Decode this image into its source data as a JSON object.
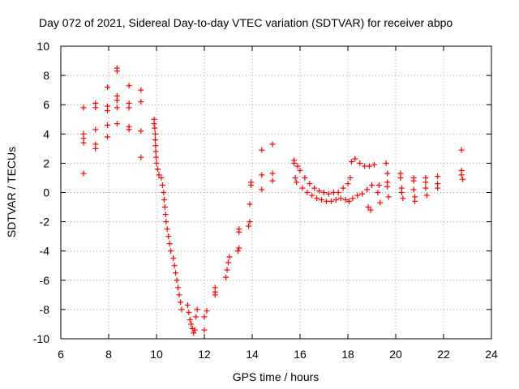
{
  "chart_data": {
    "type": "scatter",
    "title": "Day 072 of 2021, Sidereal Day-to-day VTEC variation (SDTVAR) for receiver abpo",
    "xlabel": "GPS time / hours",
    "ylabel": "SDTVAR / TECUs",
    "xlim": [
      6,
      24
    ],
    "ylim": [
      -10,
      10
    ],
    "xticks": [
      "6",
      "8",
      "10",
      "12",
      "14",
      "16",
      "18",
      "20",
      "22",
      "24"
    ],
    "yticks": [
      "10",
      "8",
      "6",
      "4",
      "2",
      "0",
      "-2",
      "-4",
      "-6",
      "-8",
      "-10"
    ],
    "grid": true,
    "marker": "plus",
    "color": "#ff0000",
    "series": [
      {
        "name": "SDTVAR",
        "points": [
          [
            6.95,
            5.8
          ],
          [
            6.95,
            4.0
          ],
          [
            6.95,
            3.7
          ],
          [
            6.95,
            3.4
          ],
          [
            6.95,
            1.3
          ],
          [
            7.45,
            6.1
          ],
          [
            7.45,
            5.8
          ],
          [
            7.45,
            4.3
          ],
          [
            7.45,
            3.3
          ],
          [
            7.45,
            3.0
          ],
          [
            7.95,
            7.2
          ],
          [
            7.95,
            5.9
          ],
          [
            7.95,
            5.6
          ],
          [
            7.95,
            4.6
          ],
          [
            7.95,
            3.8
          ],
          [
            8.35,
            8.5
          ],
          [
            8.35,
            8.3
          ],
          [
            8.35,
            6.6
          ],
          [
            8.35,
            6.3
          ],
          [
            8.35,
            5.8
          ],
          [
            8.35,
            4.7
          ],
          [
            8.85,
            7.3
          ],
          [
            8.85,
            6.1
          ],
          [
            8.85,
            5.8
          ],
          [
            8.85,
            4.5
          ],
          [
            8.85,
            4.3
          ],
          [
            9.35,
            7.0
          ],
          [
            9.35,
            6.2
          ],
          [
            9.35,
            4.2
          ],
          [
            9.35,
            2.4
          ],
          [
            9.9,
            5.0
          ],
          [
            9.9,
            4.7
          ],
          [
            9.93,
            4.4
          ],
          [
            9.95,
            4.0
          ],
          [
            9.95,
            3.6
          ],
          [
            9.96,
            3.2
          ],
          [
            9.97,
            2.8
          ],
          [
            9.98,
            2.4
          ],
          [
            10.0,
            2.0
          ],
          [
            10.05,
            1.6
          ],
          [
            10.1,
            1.2
          ],
          [
            10.2,
            1.0
          ],
          [
            10.25,
            0.5
          ],
          [
            10.3,
            0.0
          ],
          [
            10.32,
            -0.5
          ],
          [
            10.35,
            -1.0
          ],
          [
            10.38,
            -1.5
          ],
          [
            10.4,
            -2.0
          ],
          [
            10.45,
            -2.5
          ],
          [
            10.5,
            -3.0
          ],
          [
            10.55,
            -3.5
          ],
          [
            10.6,
            -4.0
          ],
          [
            10.7,
            -4.5
          ],
          [
            10.75,
            -5.0
          ],
          [
            10.8,
            -5.5
          ],
          [
            10.85,
            -6.0
          ],
          [
            10.9,
            -6.5
          ],
          [
            10.95,
            -7.0
          ],
          [
            11.0,
            -7.5
          ],
          [
            11.05,
            -8.0
          ],
          [
            11.3,
            -7.7
          ],
          [
            11.35,
            -8.2
          ],
          [
            11.4,
            -8.7
          ],
          [
            11.45,
            -9.0
          ],
          [
            11.5,
            -9.3
          ],
          [
            11.55,
            -9.6
          ],
          [
            11.6,
            -9.4
          ],
          [
            11.65,
            -8.5
          ],
          [
            11.7,
            -8.0
          ],
          [
            12.0,
            -8.5
          ],
          [
            12.0,
            -9.4
          ],
          [
            12.1,
            -8.1
          ],
          [
            12.45,
            -7.0
          ],
          [
            12.45,
            -6.8
          ],
          [
            12.45,
            -6.5
          ],
          [
            12.9,
            -5.8
          ],
          [
            12.95,
            -5.3
          ],
          [
            13.0,
            -4.8
          ],
          [
            13.05,
            -4.4
          ],
          [
            13.4,
            -4.0
          ],
          [
            13.45,
            -3.8
          ],
          [
            13.45,
            -2.7
          ],
          [
            13.45,
            -2.5
          ],
          [
            13.85,
            -2.3
          ],
          [
            13.9,
            -2.0
          ],
          [
            13.9,
            -0.8
          ],
          [
            13.95,
            0.5
          ],
          [
            13.95,
            0.7
          ],
          [
            14.4,
            1.2
          ],
          [
            14.4,
            0.2
          ],
          [
            14.4,
            2.9
          ],
          [
            14.85,
            1.3
          ],
          [
            14.85,
            0.8
          ],
          [
            14.85,
            3.3
          ],
          [
            15.75,
            2.2
          ],
          [
            15.75,
            2.0
          ],
          [
            15.8,
            1.0
          ],
          [
            15.85,
            0.7
          ],
          [
            15.9,
            1.8
          ],
          [
            16.0,
            1.5
          ],
          [
            16.1,
            0.3
          ],
          [
            16.2,
            1.0
          ],
          [
            16.3,
            0.0
          ],
          [
            16.4,
            0.6
          ],
          [
            16.5,
            -0.2
          ],
          [
            16.6,
            0.3
          ],
          [
            16.7,
            -0.4
          ],
          [
            16.8,
            0.1
          ],
          [
            16.9,
            -0.5
          ],
          [
            17.0,
            0.0
          ],
          [
            17.1,
            -0.6
          ],
          [
            17.2,
            -0.1
          ],
          [
            17.3,
            -0.6
          ],
          [
            17.4,
            0.0
          ],
          [
            17.5,
            -0.5
          ],
          [
            17.6,
            0.0
          ],
          [
            17.7,
            -0.4
          ],
          [
            17.8,
            0.3
          ],
          [
            17.9,
            -0.5
          ],
          [
            18.0,
            0.6
          ],
          [
            18.05,
            -0.6
          ],
          [
            18.1,
            1.0
          ],
          [
            18.15,
            2.1
          ],
          [
            18.2,
            -0.4
          ],
          [
            18.3,
            2.3
          ],
          [
            18.4,
            -0.2
          ],
          [
            18.5,
            2.0
          ],
          [
            18.6,
            -0.1
          ],
          [
            18.7,
            1.8
          ],
          [
            18.8,
            0.2
          ],
          [
            18.85,
            -1.0
          ],
          [
            18.9,
            1.8
          ],
          [
            18.95,
            -1.2
          ],
          [
            19.0,
            0.5
          ],
          [
            19.1,
            1.9
          ],
          [
            19.25,
            0.0
          ],
          [
            19.3,
            0.5
          ],
          [
            19.35,
            -0.7
          ],
          [
            19.6,
            2.0
          ],
          [
            19.65,
            1.3
          ],
          [
            19.65,
            0.7
          ],
          [
            19.65,
            0.4
          ],
          [
            19.7,
            -0.3
          ],
          [
            20.2,
            1.3
          ],
          [
            20.2,
            1.0
          ],
          [
            20.25,
            0.3
          ],
          [
            20.25,
            0.0
          ],
          [
            20.3,
            -0.4
          ],
          [
            20.75,
            1.0
          ],
          [
            20.75,
            0.8
          ],
          [
            20.75,
            0.2
          ],
          [
            20.8,
            -0.3
          ],
          [
            20.8,
            -0.6
          ],
          [
            21.25,
            1.0
          ],
          [
            21.25,
            0.7
          ],
          [
            21.25,
            0.3
          ],
          [
            21.3,
            -0.2
          ],
          [
            21.75,
            1.1
          ],
          [
            21.75,
            0.6
          ],
          [
            21.75,
            0.3
          ],
          [
            22.75,
            2.9
          ],
          [
            22.75,
            1.5
          ],
          [
            22.75,
            1.2
          ],
          [
            22.8,
            0.9
          ]
        ]
      }
    ]
  }
}
